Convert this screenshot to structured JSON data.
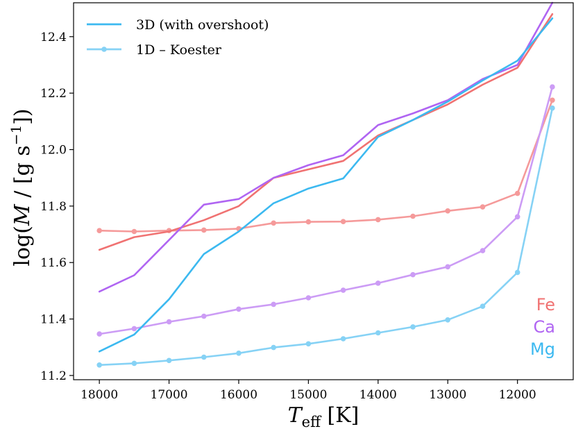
{
  "chart_data": {
    "type": "line",
    "xlabel_main": "T",
    "xlabel_sub": "eff",
    "xlabel_unit": " [K]",
    "ylabel_pre": "log(",
    "ylabel_var": "M",
    "ylabel_post": " / [g s",
    "ylabel_exp": "−1",
    "ylabel_end": "])",
    "xlim": [
      18370,
      11200
    ],
    "ylim": [
      11.185,
      12.52
    ],
    "x_ticks": [
      18000,
      17000,
      16000,
      15000,
      14000,
      13000,
      12000
    ],
    "y_ticks": [
      11.2,
      11.4,
      11.6,
      11.8,
      12.0,
      12.2,
      12.4
    ],
    "x_tick_labels": [
      "18000",
      "17000",
      "16000",
      "15000",
      "14000",
      "13000",
      "12000"
    ],
    "y_tick_labels": [
      "11.2",
      "11.4",
      "11.6",
      "11.8",
      "12.0",
      "12.2",
      "12.4"
    ],
    "x": [
      18000,
      17500,
      17000,
      16500,
      16000,
      15500,
      15000,
      14500,
      14000,
      13500,
      13000,
      12500,
      12000,
      11500
    ],
    "series": [
      {
        "name": "Fe 3D (with overshoot)",
        "element": "Fe",
        "model": "3D",
        "color": "#f07272",
        "values": [
          11.645,
          11.69,
          11.71,
          11.75,
          11.8,
          11.9,
          11.93,
          11.96,
          12.05,
          12.105,
          12.16,
          12.23,
          12.29,
          12.48
        ]
      },
      {
        "name": "Ca 3D (with overshoot)",
        "element": "Ca",
        "model": "3D",
        "color": "#b065f2",
        "values": [
          11.497,
          11.555,
          11.68,
          11.805,
          11.825,
          11.9,
          11.945,
          11.98,
          12.087,
          12.128,
          12.175,
          12.25,
          12.3,
          12.52
        ]
      },
      {
        "name": "Mg 3D (with overshoot)",
        "element": "Mg",
        "model": "3D",
        "color": "#3cb9f0",
        "values": [
          11.285,
          11.345,
          11.47,
          11.63,
          11.71,
          11.81,
          11.862,
          11.898,
          12.045,
          12.105,
          12.17,
          12.245,
          12.315,
          12.465
        ]
      },
      {
        "name": "Fe 1D - Koester",
        "element": "Fe",
        "model": "1D",
        "color": "#f59a9a",
        "values": [
          11.713,
          11.71,
          11.713,
          11.715,
          11.72,
          11.74,
          11.744,
          11.745,
          11.752,
          11.764,
          11.783,
          11.797,
          11.845,
          12.175
        ]
      },
      {
        "name": "Ca 1D - Koester",
        "element": "Ca",
        "model": "1D",
        "color": "#cc9cf5",
        "values": [
          11.347,
          11.366,
          11.39,
          11.41,
          11.435,
          11.452,
          11.475,
          11.502,
          11.527,
          11.557,
          11.585,
          11.642,
          11.762,
          12.222
        ]
      },
      {
        "name": "Mg 1D - Koester",
        "element": "Mg",
        "model": "1D",
        "color": "#86d2f5",
        "values": [
          11.237,
          11.243,
          11.253,
          11.265,
          11.279,
          11.299,
          11.312,
          11.33,
          11.351,
          11.372,
          11.397,
          11.445,
          11.565,
          12.147
        ]
      }
    ],
    "legend": [
      {
        "label": "3D  (with overshoot)",
        "style": "line",
        "color": "#3cb9f0"
      },
      {
        "label": "1D – Koester",
        "style": "line-marker",
        "color": "#86d2f5"
      }
    ],
    "element_labels": [
      {
        "text": "Fe",
        "color": "#f07272"
      },
      {
        "text": "Ca",
        "color": "#b065f2"
      },
      {
        "text": "Mg",
        "color": "#3cb9f0"
      }
    ],
    "legend_location": "top-left",
    "grid": false
  }
}
